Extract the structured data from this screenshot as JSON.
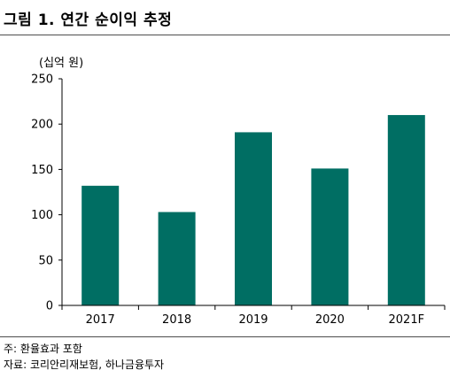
{
  "title": "그림 1. 연간 순이익 추정",
  "unit_label": "(십억 원)",
  "notes": [
    "주: 환율효과 포함",
    "자료: 코리안리재보험, 하나금융투자"
  ],
  "colors": {
    "bar": "#006e63",
    "axis": "#000000",
    "rule": "#4d4d4d"
  },
  "chart_data": {
    "type": "bar",
    "categories": [
      "2017",
      "2018",
      "2019",
      "2020",
      "2021F"
    ],
    "values": [
      132,
      103,
      191,
      151,
      210
    ],
    "yticks": [
      0,
      50,
      100,
      150,
      200,
      250
    ],
    "ylim": [
      0,
      250
    ],
    "grid": false,
    "legend": "none"
  }
}
